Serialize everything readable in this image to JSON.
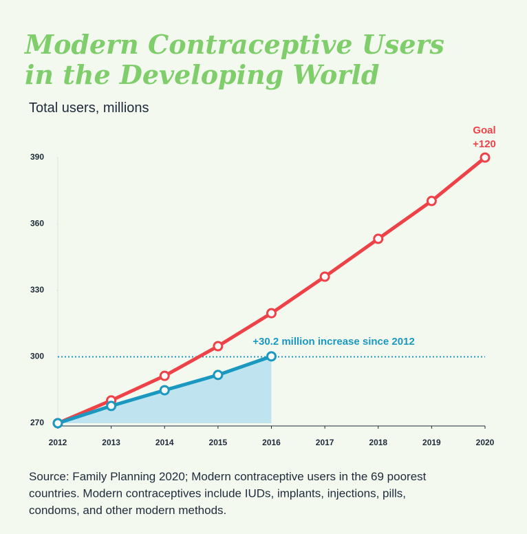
{
  "chart_data": {
    "type": "line",
    "title": [
      "Modern Contraceptive Users",
      "in the Developing World"
    ],
    "subtitle": "Total users, millions",
    "x": [
      2012,
      2013,
      2014,
      2015,
      2016,
      2017,
      2018,
      2019,
      2020
    ],
    "xlim": [
      2012,
      2020
    ],
    "xticks": [
      2012,
      2013,
      2014,
      2015,
      2016,
      2017,
      2018,
      2019,
      2020
    ],
    "ylim": [
      270,
      390
    ],
    "yticks": [
      270,
      300,
      330,
      360,
      390
    ],
    "hline": 300,
    "series": [
      {
        "color": "#ee4249",
        "values": [
          270,
          280.3,
          291.4,
          304.8,
          319.7,
          336.2,
          353.3,
          370.4,
          390
        ]
      },
      {
        "color": "#1a98c0",
        "fill": "#bfe4f0",
        "values": [
          270,
          277.8,
          284.9,
          291.8,
          300.2,
          null,
          null,
          null,
          null
        ]
      }
    ],
    "annotations": [
      {
        "text": "+30.2 million increase since 2012",
        "color": "#1a98c0"
      },
      {
        "text": "Goal",
        "color": "#ee4249"
      },
      {
        "text": "+120",
        "color": "#ee4249"
      }
    ],
    "source": [
      "Source: Family Planning 2020; Modern contraceptive users in the 69 poorest",
      "countries. Modern contraceptives include IUDs, implants, injections, pills,",
      "condoms, and other modern methods."
    ]
  }
}
